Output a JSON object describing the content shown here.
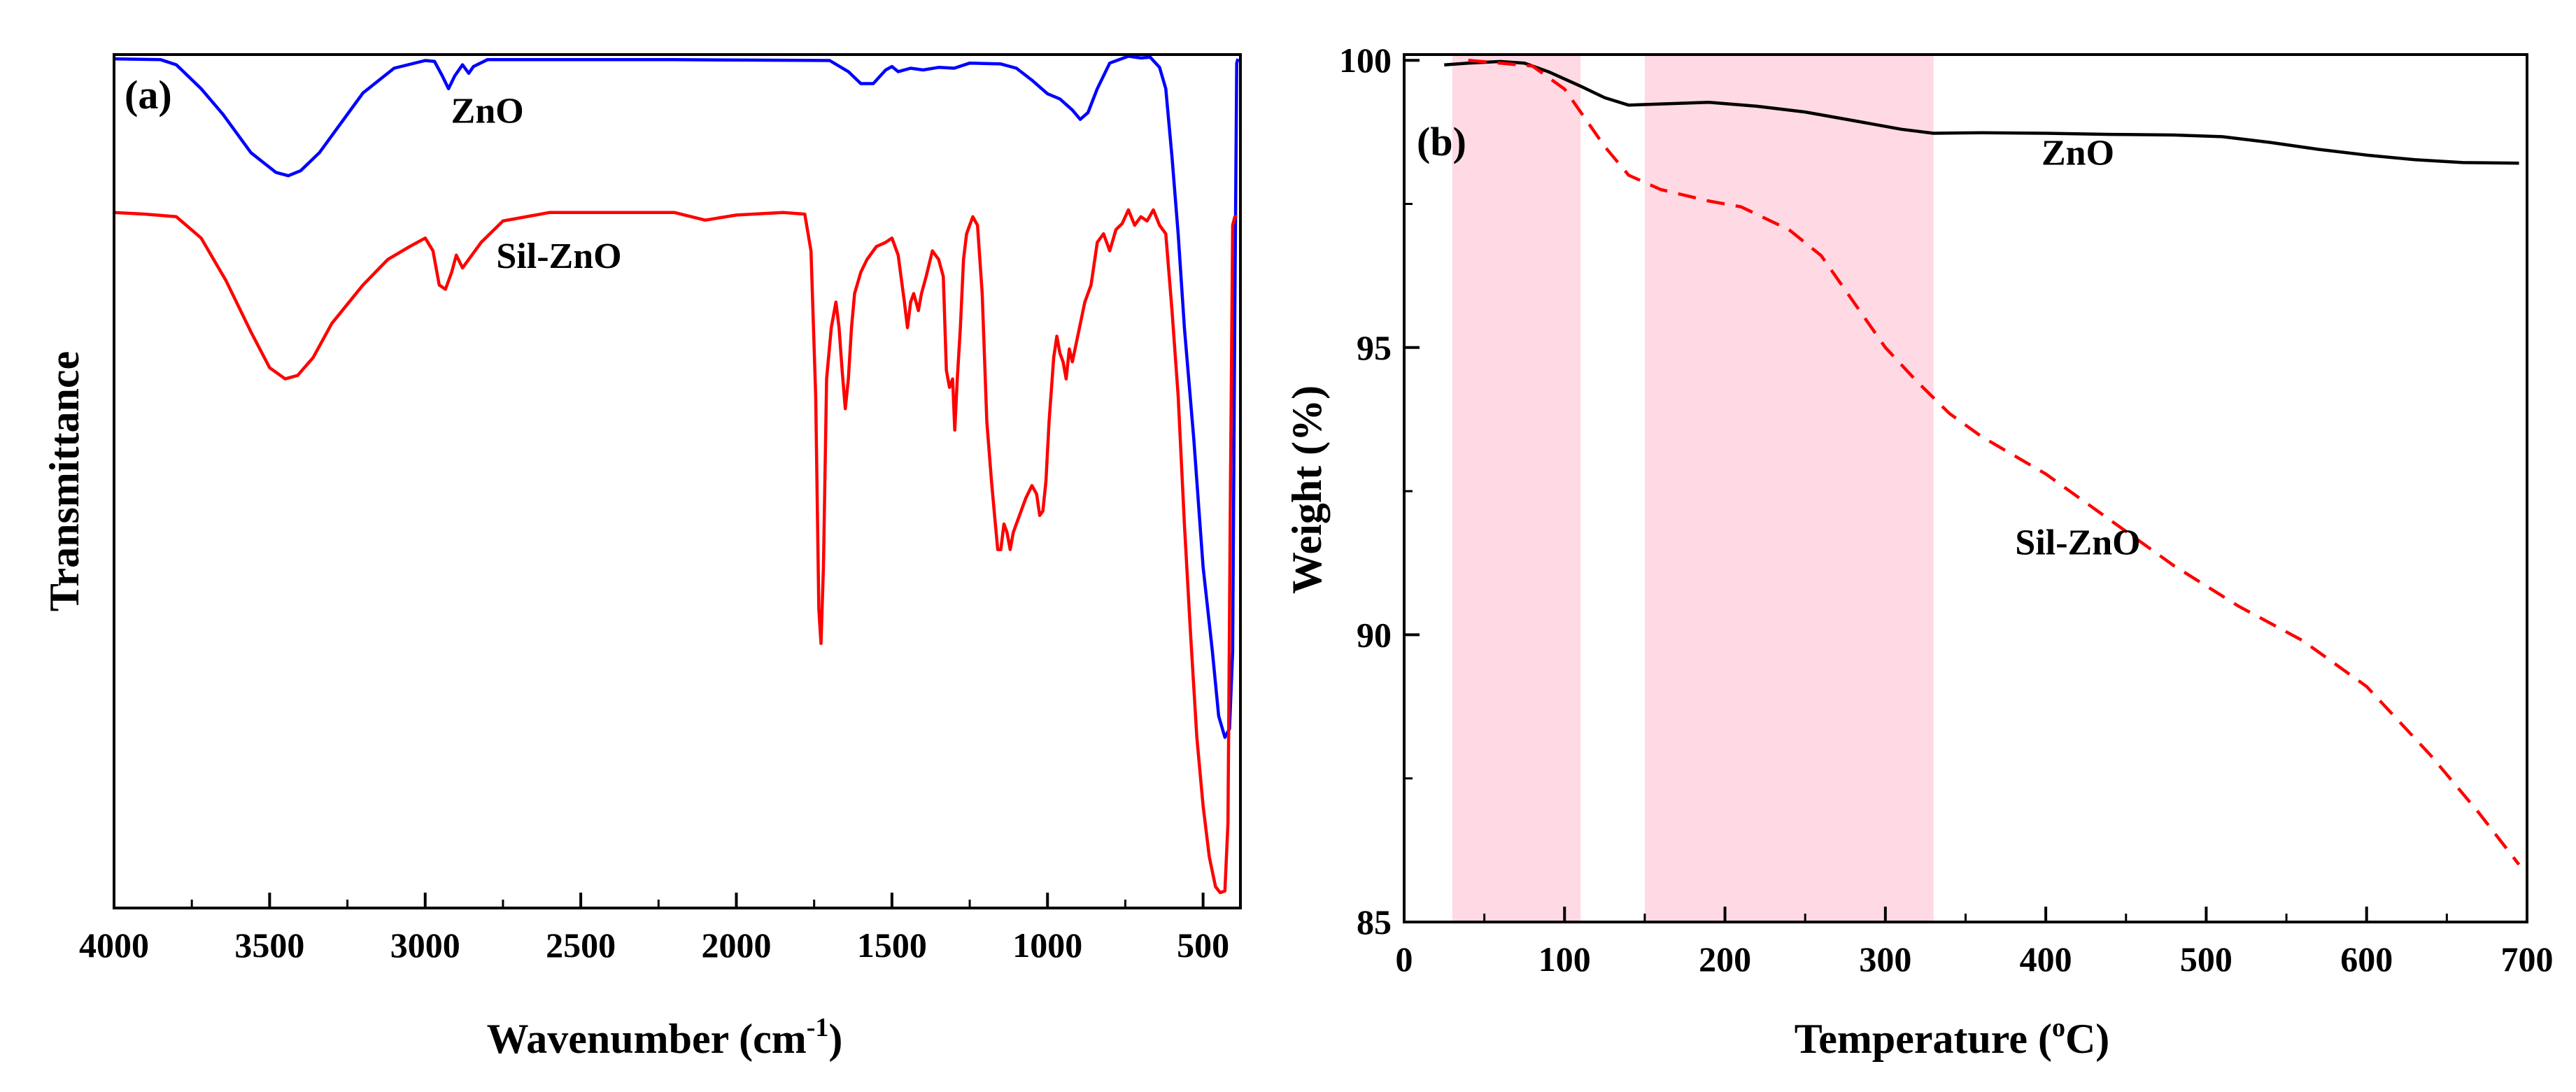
{
  "chart_data": [
    {
      "type": "line",
      "panel_label": "(a)",
      "xlabel_main": "Wavenumber (cm",
      "xlabel_sup": "-1",
      "xlabel_end": ")",
      "ylabel": "Transmittance",
      "xlim": [
        4000,
        380
      ],
      "ylim": [
        0,
        100
      ],
      "x_ticks": [
        4000,
        3500,
        3000,
        2500,
        2000,
        1500,
        1000,
        500
      ],
      "x_tick_labels": [
        "4000",
        "3500",
        "3000",
        "2500",
        "2000",
        "1500",
        "1000",
        "500"
      ],
      "y_ticks_shown": false,
      "series": [
        {
          "name": "ZnO",
          "label": "ZnO",
          "color": "#0000ff",
          "label_at": [
            2800,
            92
          ],
          "points": [
            [
              4000,
              99.5
            ],
            [
              3850,
              99.4
            ],
            [
              3800,
              98.8
            ],
            [
              3720,
              96
            ],
            [
              3650,
              93
            ],
            [
              3560,
              88.5
            ],
            [
              3480,
              86.2
            ],
            [
              3440,
              85.8
            ],
            [
              3400,
              86.4
            ],
            [
              3340,
              88.5
            ],
            [
              3260,
              92.5
            ],
            [
              3200,
              95.5
            ],
            [
              3100,
              98.4
            ],
            [
              3000,
              99.3
            ],
            [
              2970,
              99.2
            ],
            [
              2945,
              97.5
            ],
            [
              2925,
              96
            ],
            [
              2905,
              97.5
            ],
            [
              2880,
              98.8
            ],
            [
              2860,
              97.8
            ],
            [
              2845,
              98.6
            ],
            [
              2800,
              99.4
            ],
            [
              2200,
              99.4
            ],
            [
              1700,
              99.3
            ],
            [
              1640,
              98
            ],
            [
              1600,
              96.6
            ],
            [
              1560,
              96.6
            ],
            [
              1520,
              98.2
            ],
            [
              1500,
              98.6
            ],
            [
              1480,
              98
            ],
            [
              1440,
              98.4
            ],
            [
              1400,
              98.2
            ],
            [
              1350,
              98.5
            ],
            [
              1300,
              98.4
            ],
            [
              1250,
              99
            ],
            [
              1150,
              98.9
            ],
            [
              1100,
              98.4
            ],
            [
              1050,
              97
            ],
            [
              1000,
              95.4
            ],
            [
              960,
              94.8
            ],
            [
              920,
              93.5
            ],
            [
              895,
              92.4
            ],
            [
              870,
              93.2
            ],
            [
              840,
              96
            ],
            [
              800,
              99
            ],
            [
              740,
              99.8
            ],
            [
              700,
              99.6
            ],
            [
              670,
              99.7
            ],
            [
              640,
              98.5
            ],
            [
              620,
              96
            ],
            [
              600,
              88
            ],
            [
              580,
              79
            ],
            [
              560,
              68
            ],
            [
              530,
              55
            ],
            [
              500,
              40
            ],
            [
              470,
              30
            ],
            [
              450,
              22.5
            ],
            [
              430,
              20
            ],
            [
              415,
              21
            ],
            [
              405,
              30
            ],
            [
              398,
              70
            ],
            [
              392,
              99
            ],
            [
              388,
              99.5
            ]
          ]
        },
        {
          "name": "Sil-ZnO",
          "label": "Sil-ZnO",
          "color": "#ff0000",
          "label_at": [
            2570,
            75
          ],
          "points": [
            [
              4000,
              81.5
            ],
            [
              3900,
              81.3
            ],
            [
              3800,
              81
            ],
            [
              3720,
              78.5
            ],
            [
              3640,
              73.5
            ],
            [
              3560,
              67.5
            ],
            [
              3500,
              63.3
            ],
            [
              3450,
              62
            ],
            [
              3410,
              62.4
            ],
            [
              3360,
              64.5
            ],
            [
              3300,
              68.5
            ],
            [
              3200,
              73
            ],
            [
              3120,
              76
            ],
            [
              3050,
              77.5
            ],
            [
              3000,
              78.5
            ],
            [
              2975,
              77
            ],
            [
              2955,
              73
            ],
            [
              2935,
              72.5
            ],
            [
              2915,
              74.5
            ],
            [
              2900,
              76.5
            ],
            [
              2880,
              75
            ],
            [
              2860,
              76
            ],
            [
              2820,
              78
            ],
            [
              2750,
              80.5
            ],
            [
              2600,
              81.5
            ],
            [
              2200,
              81.5
            ],
            [
              2100,
              80.6
            ],
            [
              2000,
              81.2
            ],
            [
              1850,
              81.5
            ],
            [
              1780,
              81.3
            ],
            [
              1760,
              77
            ],
            [
              1745,
              60
            ],
            [
              1735,
              35
            ],
            [
              1728,
              31
            ],
            [
              1720,
              40
            ],
            [
              1710,
              62
            ],
            [
              1695,
              68
            ],
            [
              1680,
              71
            ],
            [
              1670,
              68
            ],
            [
              1660,
              63
            ],
            [
              1650,
              58.5
            ],
            [
              1640,
              62
            ],
            [
              1630,
              68
            ],
            [
              1620,
              72
            ],
            [
              1600,
              74.5
            ],
            [
              1580,
              76
            ],
            [
              1550,
              77.5
            ],
            [
              1520,
              78
            ],
            [
              1500,
              78.5
            ],
            [
              1480,
              76.5
            ],
            [
              1460,
              71
            ],
            [
              1450,
              68
            ],
            [
              1440,
              71
            ],
            [
              1430,
              72
            ],
            [
              1415,
              70
            ],
            [
              1405,
              72
            ],
            [
              1390,
              74
            ],
            [
              1370,
              77
            ],
            [
              1350,
              76
            ],
            [
              1335,
              74
            ],
            [
              1325,
              63
            ],
            [
              1315,
              61
            ],
            [
              1305,
              62
            ],
            [
              1298,
              56
            ],
            [
              1290,
              62
            ],
            [
              1280,
              68
            ],
            [
              1270,
              76
            ],
            [
              1260,
              79
            ],
            [
              1240,
              81
            ],
            [
              1225,
              80
            ],
            [
              1210,
              72
            ],
            [
              1195,
              57
            ],
            [
              1180,
              50
            ],
            [
              1170,
              46
            ],
            [
              1160,
              42
            ],
            [
              1150,
              42
            ],
            [
              1140,
              45
            ],
            [
              1130,
              44
            ],
            [
              1120,
              42
            ],
            [
              1110,
              44
            ],
            [
              1090,
              46
            ],
            [
              1070,
              48
            ],
            [
              1050,
              49.5
            ],
            [
              1035,
              48.5
            ],
            [
              1025,
              46
            ],
            [
              1015,
              46.5
            ],
            [
              1005,
              50
            ],
            [
              995,
              57
            ],
            [
              980,
              64.5
            ],
            [
              970,
              67
            ],
            [
              960,
              65
            ],
            [
              950,
              64
            ],
            [
              940,
              62
            ],
            [
              930,
              65.5
            ],
            [
              920,
              64
            ],
            [
              900,
              67.5
            ],
            [
              880,
              71
            ],
            [
              860,
              73
            ],
            [
              840,
              78
            ],
            [
              820,
              79
            ],
            [
              800,
              77
            ],
            [
              780,
              79.5
            ],
            [
              760,
              80.2
            ],
            [
              740,
              81.8
            ],
            [
              720,
              80
            ],
            [
              700,
              81
            ],
            [
              680,
              80.5
            ],
            [
              660,
              81.8
            ],
            [
              640,
              80
            ],
            [
              620,
              79
            ],
            [
              600,
              70
            ],
            [
              580,
              60
            ],
            [
              560,
              45
            ],
            [
              540,
              32
            ],
            [
              520,
              20
            ],
            [
              500,
              12
            ],
            [
              480,
              6
            ],
            [
              460,
              2.5
            ],
            [
              445,
              1.8
            ],
            [
              430,
              2
            ],
            [
              420,
              10
            ],
            [
              412,
              50
            ],
            [
              405,
              80
            ],
            [
              398,
              81
            ],
            [
              390,
              81
            ]
          ]
        }
      ]
    },
    {
      "type": "line",
      "panel_label": "(b)",
      "xlabel_main": "Temperature (",
      "xlabel_sup": "o",
      "xlabel_end": "C)",
      "ylabel": "Weight (%)",
      "xlim": [
        0,
        700
      ],
      "ylim": [
        85,
        100.1
      ],
      "x_ticks": [
        0,
        100,
        200,
        300,
        400,
        500,
        600,
        700
      ],
      "x_tick_labels": [
        "0",
        "100",
        "200",
        "300",
        "400",
        "500",
        "600",
        "700"
      ],
      "y_ticks": [
        85,
        90,
        95,
        100
      ],
      "y_tick_labels": [
        "85",
        "90",
        "95",
        "100"
      ],
      "shaded_regions": [
        [
          30,
          110
        ],
        [
          150,
          330
        ]
      ],
      "shade_color": "#ffd9e4",
      "series": [
        {
          "name": "ZnO",
          "label": "ZnO",
          "color": "#000000",
          "style": "solid",
          "label_at": [
            420,
            98.18
          ],
          "points": [
            [
              25,
              99.92
            ],
            [
              40,
              99.95
            ],
            [
              60,
              99.98
            ],
            [
              75,
              99.95
            ],
            [
              90,
              99.8
            ],
            [
              110,
              99.55
            ],
            [
              125,
              99.35
            ],
            [
              140,
              99.22
            ],
            [
              160,
              99.24
            ],
            [
              190,
              99.27
            ],
            [
              220,
              99.2
            ],
            [
              250,
              99.1
            ],
            [
              280,
              98.95
            ],
            [
              310,
              98.8
            ],
            [
              330,
              98.73
            ],
            [
              360,
              98.74
            ],
            [
              400,
              98.73
            ],
            [
              440,
              98.71
            ],
            [
              480,
              98.7
            ],
            [
              510,
              98.67
            ],
            [
              540,
              98.57
            ],
            [
              570,
              98.45
            ],
            [
              600,
              98.35
            ],
            [
              630,
              98.27
            ],
            [
              660,
              98.22
            ],
            [
              695,
              98.21
            ]
          ]
        },
        {
          "name": "Sil-ZnO",
          "label": "Sil-ZnO",
          "color": "#ff0000",
          "style": "dashed",
          "label_at": [
            1255,
            91.4
          ],
          "points": [
            [
              40,
              100
            ],
            [
              60,
              99.95
            ],
            [
              80,
              99.9
            ],
            [
              100,
              99.5
            ],
            [
              110,
              99.1
            ],
            [
              125,
              98.5
            ],
            [
              140,
              98
            ],
            [
              160,
              97.75
            ],
            [
              190,
              97.55
            ],
            [
              210,
              97.45
            ],
            [
              240,
              97.05
            ],
            [
              260,
              96.6
            ],
            [
              280,
              95.8
            ],
            [
              300,
              95
            ],
            [
              320,
              94.4
            ],
            [
              340,
              93.85
            ],
            [
              360,
              93.45
            ],
            [
              400,
              92.8
            ],
            [
              440,
              92
            ],
            [
              480,
              91.2
            ],
            [
              520,
              90.5
            ],
            [
              560,
              89.9
            ],
            [
              600,
              89.1
            ],
            [
              640,
              87.9
            ],
            [
              670,
              86.9
            ],
            [
              695,
              86
            ]
          ]
        }
      ]
    }
  ]
}
